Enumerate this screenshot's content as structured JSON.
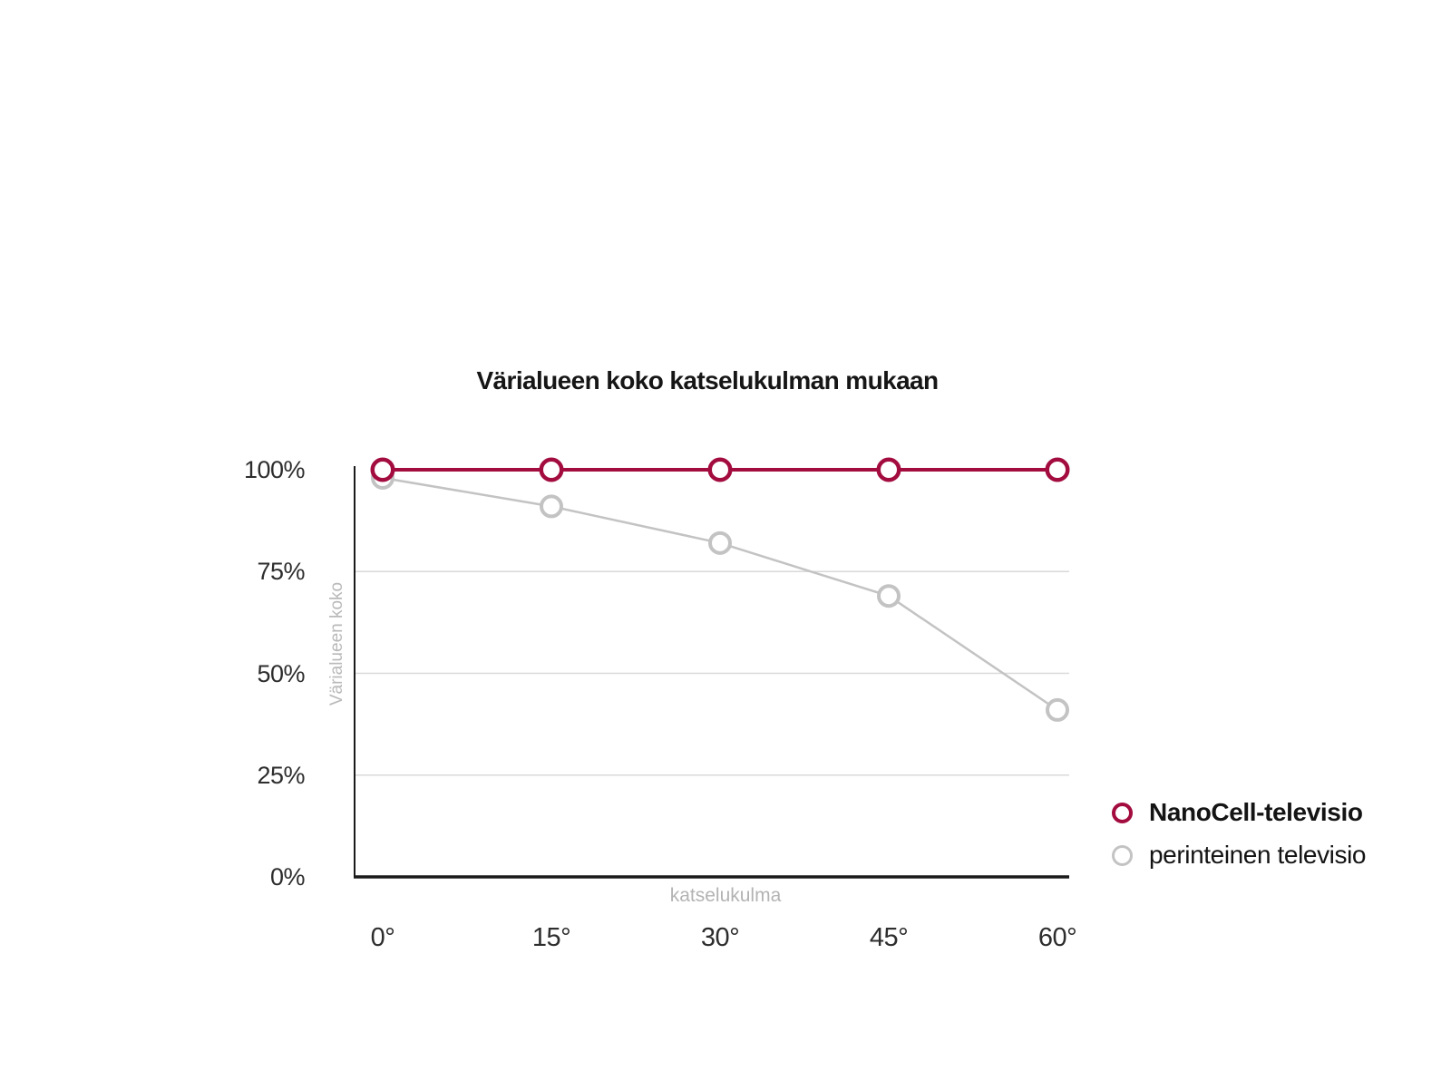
{
  "page": {
    "background_color": "#ffffff"
  },
  "chart_data": {
    "type": "line",
    "title": "Värialueen koko katselukulman mukaan",
    "xlabel": "katselukulma",
    "ylabel": "Värialueen koko",
    "categories": [
      "0°",
      "15°",
      "30°",
      "45°",
      "60°"
    ],
    "x_values_degrees": [
      0,
      15,
      30,
      45,
      60
    ],
    "series": [
      {
        "name": "NanoCell-televisio",
        "values": [
          100,
          100,
          100,
          100,
          100
        ],
        "color": "#a30c3e",
        "marker": "ring",
        "legend_bold": true
      },
      {
        "name": "perinteinen televisio",
        "values": [
          98,
          91,
          82,
          69,
          41
        ],
        "color": "#c3c3c3",
        "marker": "ring",
        "legend_bold": false
      }
    ],
    "ylim": [
      0,
      100
    ],
    "yticks": [
      100,
      75,
      50,
      25,
      0
    ],
    "ytick_labels": [
      "100%",
      "75%",
      "50%",
      "25%",
      "0%"
    ],
    "grid": {
      "horizontal_at": [
        75,
        50,
        25
      ],
      "color": "#d9d9d9"
    },
    "axis_color": "#1a1a1a",
    "legend_position": "right-bottom"
  }
}
